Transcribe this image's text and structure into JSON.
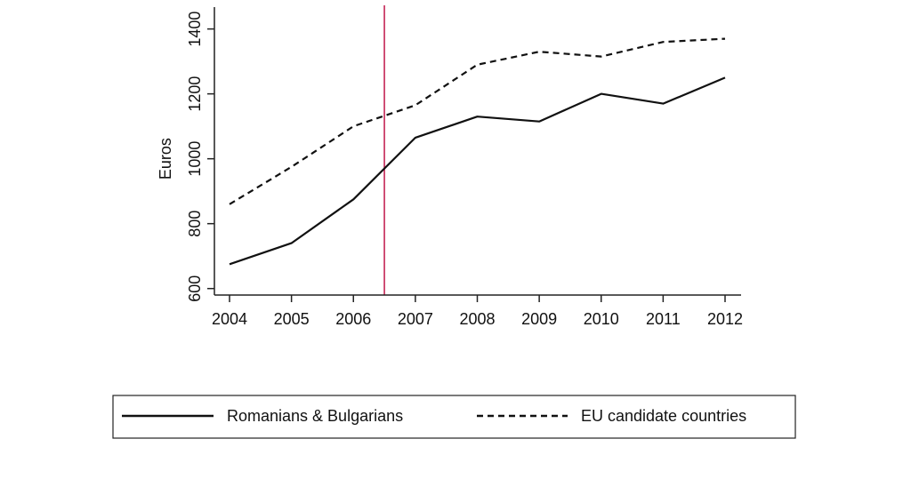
{
  "chart_data": {
    "type": "line",
    "x": [
      2004,
      2005,
      2006,
      2007,
      2008,
      2009,
      2010,
      2011,
      2012
    ],
    "ylabel": "Euros",
    "ylim": [
      580,
      1440
    ],
    "yticks": [
      600,
      800,
      1000,
      1200,
      1400
    ],
    "series": [
      {
        "name": "Romanians & Bulgarians",
        "style": "solid",
        "values": [
          675,
          740,
          875,
          1065,
          1130,
          1115,
          1200,
          1170,
          1250
        ]
      },
      {
        "name": "EU candidate countries",
        "style": "dashed",
        "values": [
          860,
          975,
          1100,
          1165,
          1290,
          1330,
          1315,
          1360,
          1370
        ]
      }
    ],
    "reference_line": {
      "x": 2006.5,
      "color": "#c0174a"
    },
    "legend": "bottom",
    "grid": false
  }
}
